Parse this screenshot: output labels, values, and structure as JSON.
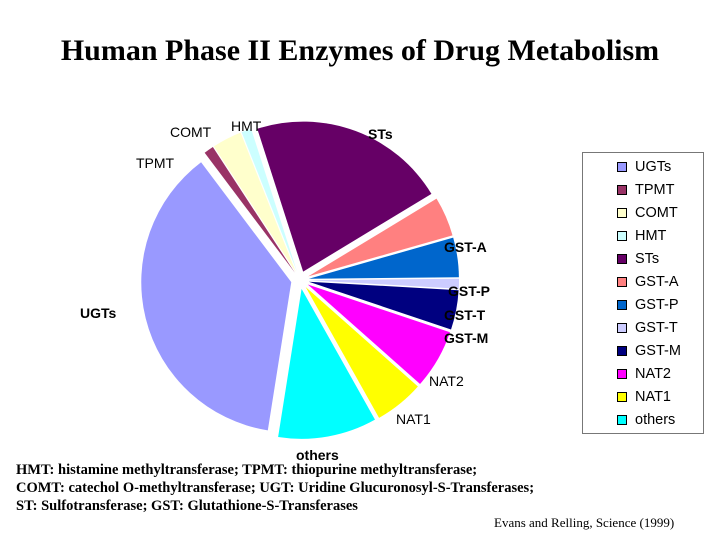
{
  "chart_data": {
    "type": "pie",
    "title": "Human Phase II Enzymes of Drug Metabolism",
    "exploded": true,
    "slices": [
      {
        "label": "UGTs",
        "value": 35,
        "color": "#9999ff"
      },
      {
        "label": "TPMT",
        "value": 1,
        "color": "#993366"
      },
      {
        "label": "COMT",
        "value": 3,
        "color": "#ffffcc"
      },
      {
        "label": "HMT",
        "value": 1,
        "color": "#ccffff"
      },
      {
        "label": "STs",
        "value": 20,
        "color": "#660066"
      },
      {
        "label": "GST-A",
        "value": 4,
        "color": "#ff8080"
      },
      {
        "label": "GST-P",
        "value": 4,
        "color": "#0066cc"
      },
      {
        "label": "GST-T",
        "value": 1,
        "color": "#ccccff"
      },
      {
        "label": "GST-M",
        "value": 4,
        "color": "#000080"
      },
      {
        "label": "NAT2",
        "value": 6,
        "color": "#ff00ff"
      },
      {
        "label": "NAT1",
        "value": 5,
        "color": "#ffff00"
      },
      {
        "label": "others",
        "value": 10,
        "color": "#00ffff"
      }
    ],
    "legend_position": "right"
  },
  "footnotes": [
    "HMT: histamine methyltransferase; TPMT: thiopurine methyltransferase;",
    "COMT: catechol O-methyltransferase; UGT: Uridine Glucuronosyl-S-Transferases;",
    "ST: Sulfotransferase; GST: Glutathione-S-Transferases"
  ],
  "source": "Evans and Relling, Science (1999)"
}
